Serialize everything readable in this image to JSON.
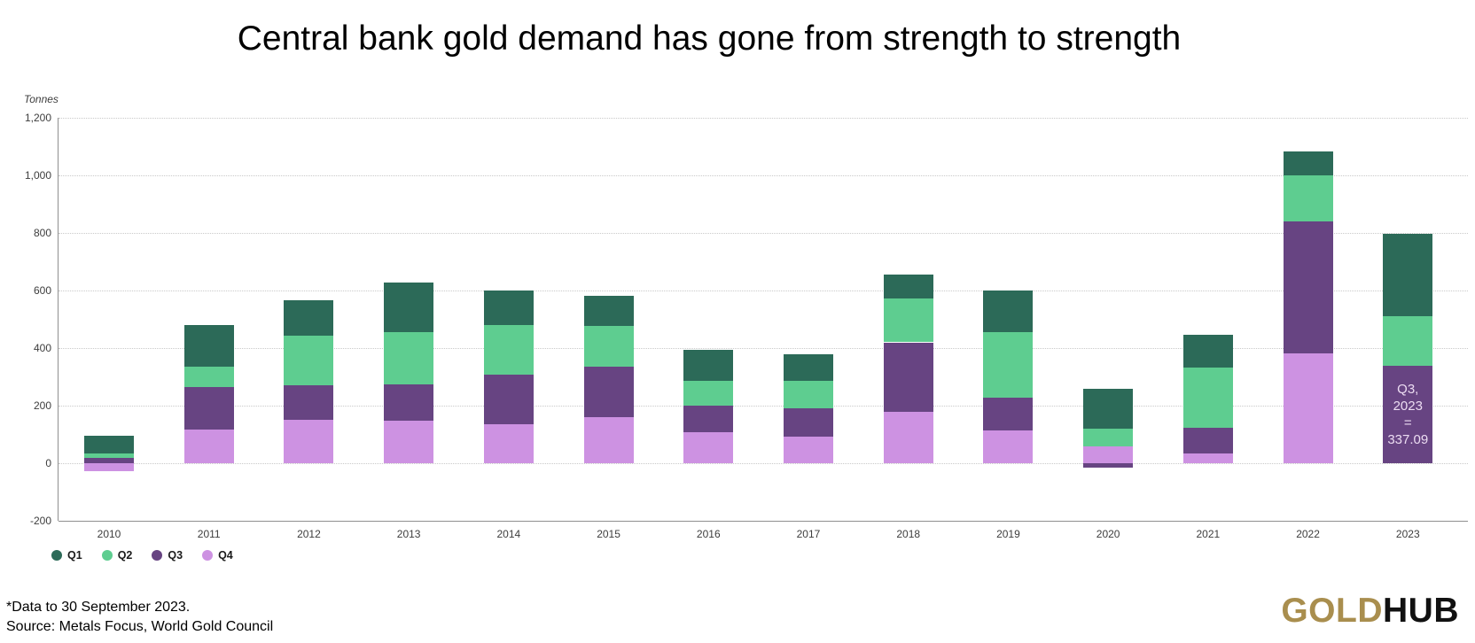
{
  "footnotes": {
    "line1": "*Data to 30 September 2023.",
    "line2": "Source: Metals Focus, World Gold Council"
  },
  "logo": {
    "gold": "GOLD",
    "hub": "HUB"
  },
  "colors": {
    "q1": "#2c6a58",
    "q2": "#5ecd90",
    "q3": "#674482",
    "q4": "#cd92e2",
    "grid": "#c9c9c9",
    "axis": "#8f8f8f",
    "annotation_text": "#ecdcf2",
    "logo_gold": "#a98e4e"
  },
  "chart_data": {
    "type": "bar",
    "stacked": true,
    "title": "Central bank gold demand has gone from strength to strength",
    "unit_label": "Tonnes",
    "xlabel": "",
    "ylabel": "Tonnes",
    "ylim": [
      -200,
      1200
    ],
    "ytick_step": 200,
    "grid": "dotted horizontal",
    "legend_position": "bottom-left",
    "categories": [
      "2010",
      "2011",
      "2012",
      "2013",
      "2014",
      "2015",
      "2016",
      "2017",
      "2018",
      "2019",
      "2020",
      "2021",
      "2022",
      "2023"
    ],
    "series": [
      {
        "name": "Q1",
        "color": "#2c6a58",
        "values": [
          59,
          145,
          124,
          173,
          120,
          105,
          108,
          92,
          85,
          146,
          140,
          116,
          83,
          284
        ]
      },
      {
        "name": "Q2",
        "color": "#5ecd90",
        "values": [
          15,
          68,
          173,
          180,
          171,
          141,
          85,
          94,
          151,
          227,
          61,
          208,
          159,
          174.8
        ]
      },
      {
        "name": "Q3",
        "color": "#674482",
        "values": [
          20,
          150,
          118,
          126,
          174,
          175,
          91,
          99,
          242,
          114,
          -15,
          89,
          459,
          337.09
        ]
      },
      {
        "name": "Q4",
        "color": "#cd92e2",
        "values": [
          -27,
          116,
          152,
          149,
          134,
          161,
          109,
          93,
          178,
          113,
          59,
          34,
          382,
          0
        ]
      }
    ],
    "stack_order_bottom_to_top": [
      "Q4",
      "Q3",
      "Q2",
      "Q1"
    ],
    "annotation": {
      "category": "2023",
      "series": "Q3",
      "lines": [
        "Q3,",
        "2023",
        "=",
        "337.09"
      ],
      "value": 337.09
    }
  }
}
